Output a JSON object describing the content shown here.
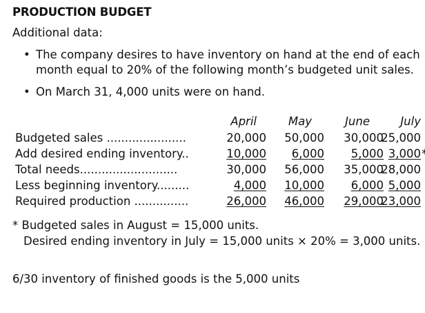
{
  "title": "PRODUCTION BUDGET",
  "subtitle": "Additional data:",
  "bullets": [
    "The company desires to have inventory on hand at the end of each month equal to 20% of the following month’s budgeted unit sales.",
    "On March 31, 4,000 units were on hand."
  ],
  "bullet_lines": {
    "b1_line1": "The company desires to have inventory on hand at the end of each",
    "b1_line2": "month equal to 20% of the following month’s budgeted unit sales.",
    "b2_line1": "On March 31, 4,000 units were on hand."
  },
  "table": {
    "columns": [
      "April",
      "May",
      "June",
      "July"
    ],
    "rows": [
      {
        "label": "Budgeted sales ......................",
        "values": [
          "20,000",
          "50,000",
          "30,000",
          "25,000"
        ]
      },
      {
        "label": "Add desired ending inventory..",
        "values": [
          "10,000",
          "6,000",
          "5,000",
          "3,000"
        ],
        "mark": "*"
      },
      {
        "label": "Total needs...........................",
        "values": [
          "30,000",
          "56,000",
          "35,000",
          "28,000"
        ]
      },
      {
        "label": "Less beginning inventory.........",
        "values": [
          "4,000",
          "10,000",
          "6,000",
          "5,000"
        ]
      },
      {
        "label": "Required production ...............",
        "values": [
          "26,000",
          "46,000",
          "29,000",
          "23,000"
        ]
      }
    ]
  },
  "footnote": {
    "line1": "* Budgeted sales in August = 15,000 units.",
    "line2": "Desired ending inventory in July = 15,000 units × 20% = 3,000 units."
  },
  "note": "6/30 inventory of finished goods is the 5,000 units"
}
